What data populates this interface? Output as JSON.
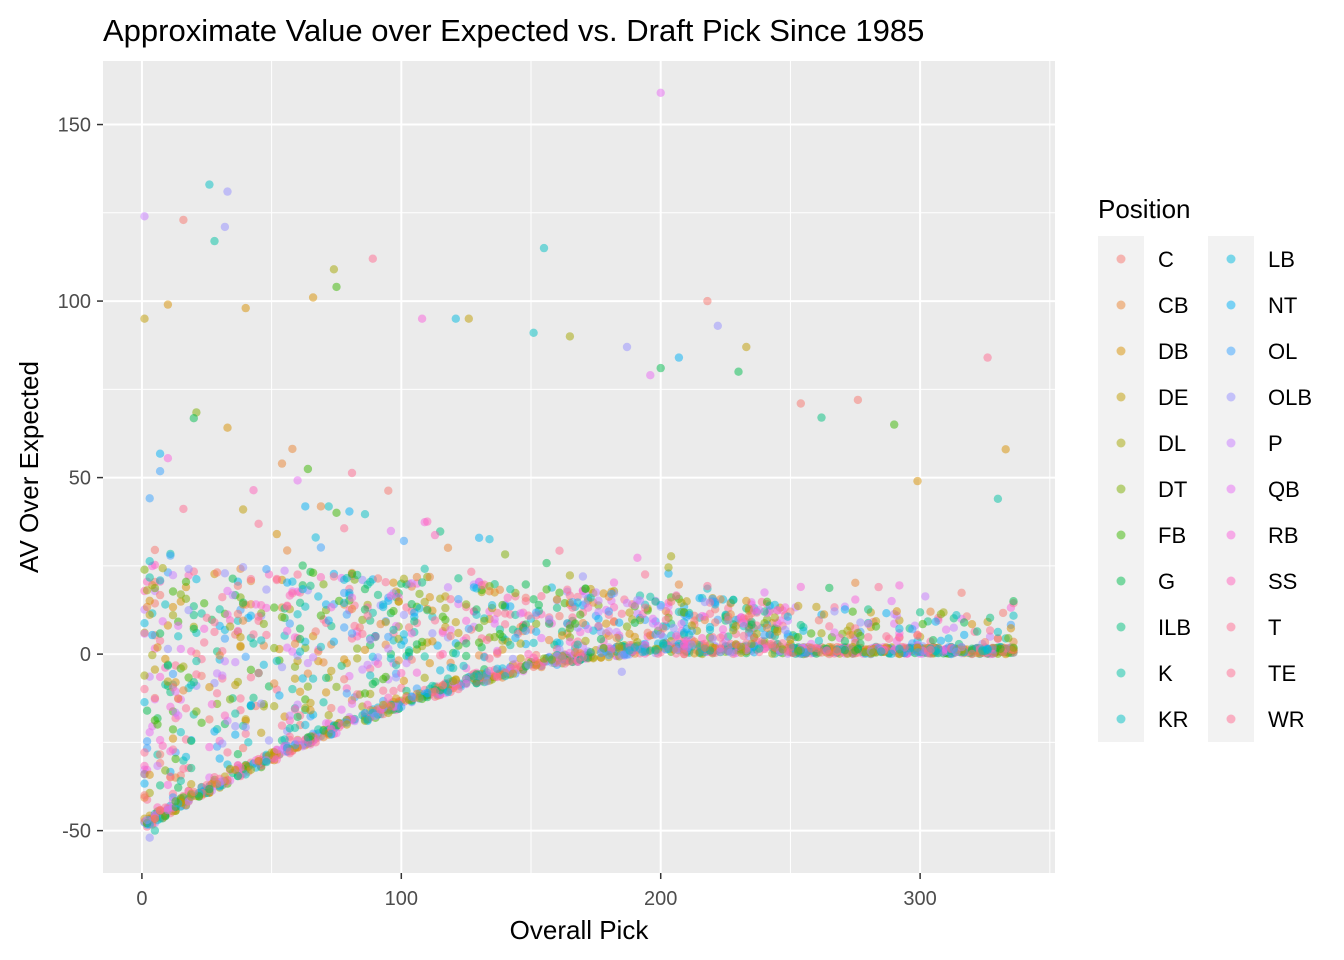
{
  "chart_data": {
    "type": "scatter",
    "title": "Approximate Value over Expected vs. Draft Pick Since 1985",
    "xlabel": "Overall Pick",
    "ylabel": "AV Over Expected",
    "xlim": [
      -15,
      352
    ],
    "ylim": [
      -62,
      168
    ],
    "x_ticks": [
      0,
      100,
      200,
      300
    ],
    "x_tick_labels": [
      "0",
      "100",
      "200",
      "300"
    ],
    "y_ticks": [
      -50,
      0,
      50,
      100,
      150
    ],
    "y_tick_labels": [
      "-50",
      "0",
      "50",
      "100",
      "150"
    ],
    "grid": true,
    "point_alpha": 0.5,
    "legend": {
      "title": "Position",
      "placement": "right",
      "columns": 2
    },
    "series": [
      {
        "name": "C",
        "color": "#F8766D"
      },
      {
        "name": "CB",
        "color": "#EA8331"
      },
      {
        "name": "DB",
        "color": "#D89000"
      },
      {
        "name": "DE",
        "color": "#C09B00"
      },
      {
        "name": "DL",
        "color": "#A3A500"
      },
      {
        "name": "DT",
        "color": "#7CAE00"
      },
      {
        "name": "FB",
        "color": "#39B600"
      },
      {
        "name": "G",
        "color": "#00BB4E"
      },
      {
        "name": "ILB",
        "color": "#00BF7D"
      },
      {
        "name": "K",
        "color": "#00C1A3"
      },
      {
        "name": "KR",
        "color": "#00BFC4"
      },
      {
        "name": "LB",
        "color": "#00BAE0"
      },
      {
        "name": "NT",
        "color": "#00B0F6"
      },
      {
        "name": "OL",
        "color": "#35A2FF"
      },
      {
        "name": "OLB",
        "color": "#9590FF"
      },
      {
        "name": "P",
        "color": "#C77CFF"
      },
      {
        "name": "QB",
        "color": "#E76BF3"
      },
      {
        "name": "RB",
        "color": "#FA62DB"
      },
      {
        "name": "SS",
        "color": "#FF62BC"
      },
      {
        "name": "T",
        "color": "#FF6C91"
      },
      {
        "name": "TE",
        "color": "#FF6C91"
      },
      {
        "name": "WR",
        "color": "#FF6C91"
      }
    ],
    "notable_points": [
      {
        "x": 200,
        "y": 159,
        "position": "QB"
      },
      {
        "x": 26,
        "y": 133,
        "position": "KR"
      },
      {
        "x": 33,
        "y": 131,
        "position": "OLB"
      },
      {
        "x": 1,
        "y": 124,
        "position": "P"
      },
      {
        "x": 16,
        "y": 123,
        "position": "C"
      },
      {
        "x": 32,
        "y": 121,
        "position": "OLB"
      },
      {
        "x": 28,
        "y": 117,
        "position": "K"
      },
      {
        "x": 155,
        "y": 115,
        "position": "KR"
      },
      {
        "x": 89,
        "y": 112,
        "position": "WR"
      },
      {
        "x": 74,
        "y": 109,
        "position": "DL"
      },
      {
        "x": 75,
        "y": 104,
        "position": "FB"
      },
      {
        "x": 66,
        "y": 101,
        "position": "DB"
      },
      {
        "x": 218,
        "y": 100,
        "position": "C"
      },
      {
        "x": 10,
        "y": 99,
        "position": "DB"
      },
      {
        "x": 40,
        "y": 98,
        "position": "DB"
      },
      {
        "x": 1,
        "y": 95,
        "position": "DE"
      },
      {
        "x": 108,
        "y": 95,
        "position": "RB"
      },
      {
        "x": 121,
        "y": 95,
        "position": "LB"
      },
      {
        "x": 126,
        "y": 95,
        "position": "DE"
      },
      {
        "x": 222,
        "y": 93,
        "position": "OLB"
      },
      {
        "x": 151,
        "y": 91,
        "position": "KR"
      },
      {
        "x": 165,
        "y": 90,
        "position": "DL"
      },
      {
        "x": 187,
        "y": 87,
        "position": "OLB"
      },
      {
        "x": 233,
        "y": 87,
        "position": "DE"
      },
      {
        "x": 326,
        "y": 84,
        "position": "TE"
      },
      {
        "x": 207,
        "y": 84,
        "position": "NT"
      },
      {
        "x": 200,
        "y": 81,
        "position": "G"
      },
      {
        "x": 230,
        "y": 80,
        "position": "G"
      },
      {
        "x": 196,
        "y": 79,
        "position": "QB"
      },
      {
        "x": 254,
        "y": 71,
        "position": "C"
      },
      {
        "x": 276,
        "y": 72,
        "position": "C"
      },
      {
        "x": 262,
        "y": 67,
        "position": "ILB"
      },
      {
        "x": 290,
        "y": 65,
        "position": "FB"
      },
      {
        "x": 299,
        "y": 49,
        "position": "DB"
      },
      {
        "x": 330,
        "y": 44,
        "position": "K"
      },
      {
        "x": 333,
        "y": 58,
        "position": "DB"
      },
      {
        "x": 336,
        "y": 15,
        "position": "G"
      },
      {
        "x": 185,
        "y": -5,
        "position": "OLB"
      },
      {
        "x": 3,
        "y": -52,
        "position": "OLB"
      },
      {
        "x": 5,
        "y": -50,
        "position": "K"
      },
      {
        "x": 2,
        "y": -47,
        "position": "OLB"
      },
      {
        "x": 1,
        "y": -40,
        "position": "C"
      }
    ],
    "note": "Dense cloud of several thousand picks: spread between about -50 and +55 for early picks, narrowing toward 0 for late picks (floor rises from about -50 at pick 1 to 0 near pick 200)."
  }
}
